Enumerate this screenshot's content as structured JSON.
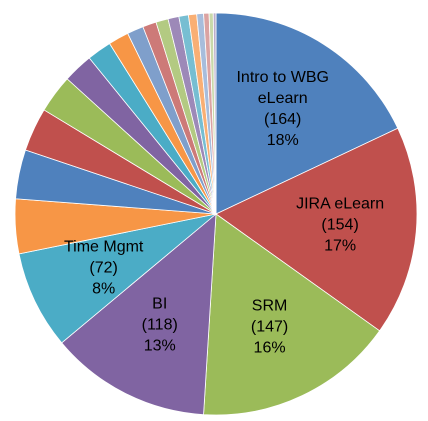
{
  "chart_data": {
    "type": "pie",
    "categories": [
      "Intro to WBG eLearn",
      "JIRA eLearn",
      "SRM",
      "BI",
      "Time Mgmt",
      null,
      null,
      null,
      null,
      null,
      null,
      null,
      null,
      null,
      null,
      null,
      null,
      null,
      null,
      null,
      null,
      null
    ],
    "values": [
      164,
      154,
      147,
      118,
      72,
      40,
      36,
      32,
      28,
      22,
      18,
      15,
      12,
      10,
      9,
      8,
      7,
      6,
      5,
      4,
      3,
      2
    ],
    "value_labels": [
      "(164)",
      "(154)",
      "(147)",
      "(118)",
      "(72)",
      null,
      null,
      null,
      null,
      null,
      null,
      null,
      null,
      null,
      null,
      null,
      null,
      null,
      null,
      null,
      null,
      null
    ],
    "percent_labels": [
      "18%",
      "17%",
      "16%",
      "13%",
      "8%",
      null,
      null,
      null,
      null,
      null,
      null,
      null,
      null,
      null,
      null,
      null,
      null,
      null,
      null,
      null,
      null,
      null
    ],
    "colors": [
      "#4F81BD",
      "#C0504D",
      "#9BBB59",
      "#8064A2",
      "#4BACC6",
      "#F79646",
      "#4F81BD",
      "#C0504D",
      "#9BBB59",
      "#8064A2",
      "#4BACC6",
      "#F79646",
      "#7F9FCB",
      "#CD7A78",
      "#B3CA82",
      "#9D89B8",
      "#77BED2",
      "#F9AF74",
      "#A7BDDC",
      "#DBA3A2",
      "#C9D9AA",
      "#BBAECB"
    ]
  }
}
